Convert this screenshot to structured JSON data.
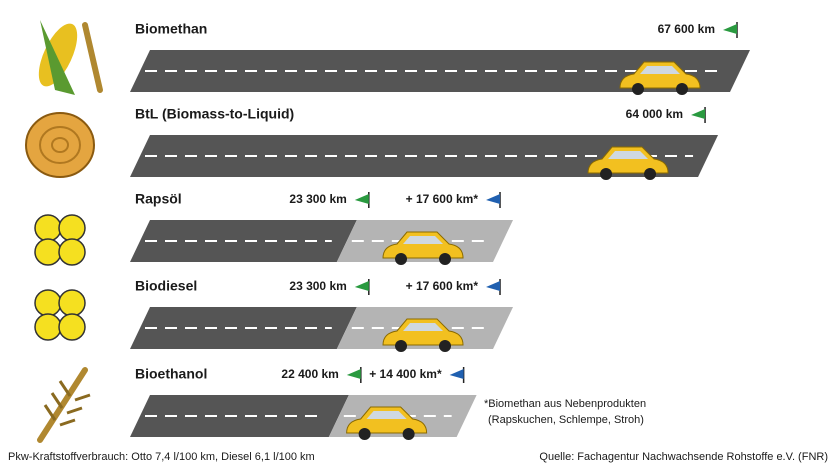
{
  "chart_data": {
    "type": "bar",
    "orientation": "horizontal",
    "stacked": true,
    "categories": [
      "Biomethan",
      "BtL (Biomass-to-Liquid)",
      "Rapsöl",
      "Biodiesel",
      "Bioethanol"
    ],
    "series": [
      {
        "color": "#555555",
        "values": [
          67600,
          64000,
          23300,
          23300,
          22400
        ],
        "value_labels": [
          "67 600 km",
          "64 000 km",
          "23 300 km",
          "23 300 km",
          "22 400 km"
        ]
      },
      {
        "color": "#b4b4b4",
        "values": [
          null,
          null,
          17600,
          17600,
          14400
        ],
        "value_labels": [
          null,
          null,
          "+ 17 600 km*",
          "+ 17 600 km*",
          "+ 14 400 km*"
        ]
      }
    ],
    "footnote": [
      "*Biomethan aus Nebenprodukten",
      "(Rapskuchen, Schlempe, Stroh)"
    ],
    "note": "Pkw-Kraftstoffverbrauch: Otto 7,4 l/100 km, Diesel 6,1 l/100 km",
    "source": "Quelle: Fachagentur Nachwachsende Rohstoffe e.V. (FNR)"
  }
}
